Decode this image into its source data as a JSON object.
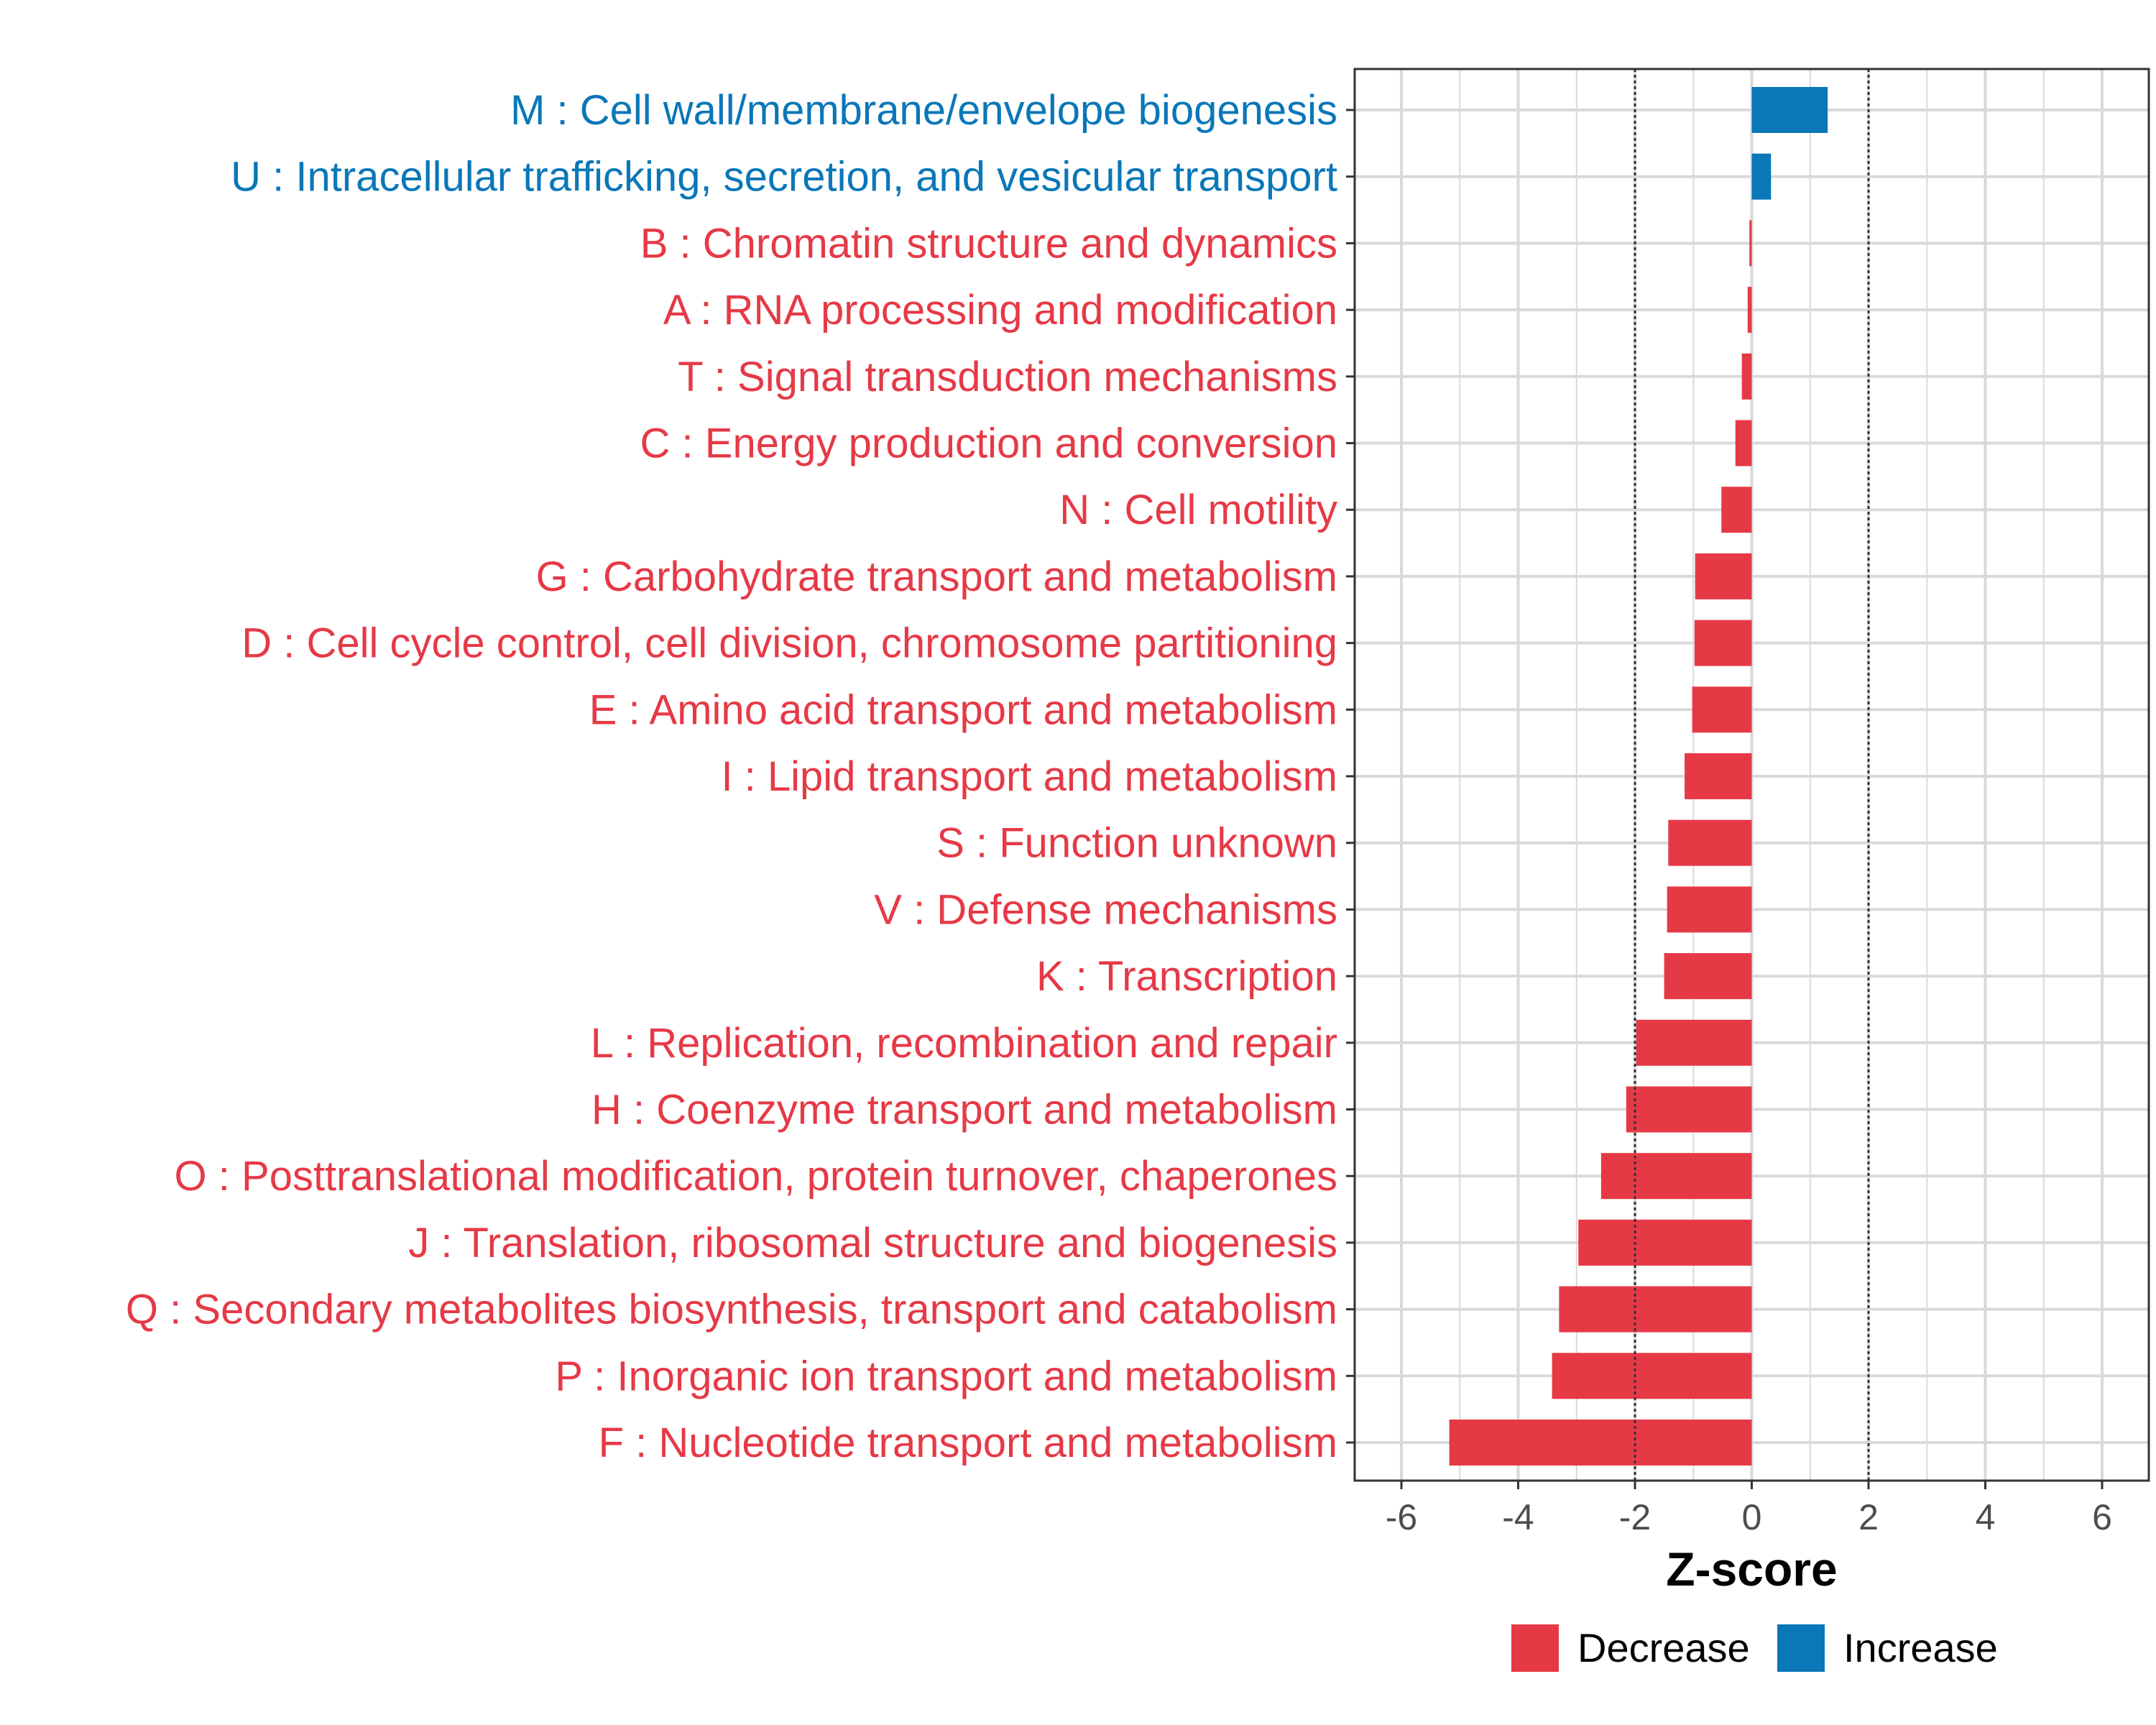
{
  "chart_data": {
    "type": "bar",
    "orientation": "horizontal",
    "categories": [
      "M : Cell wall/membrane/envelope biogenesis",
      "U : Intracellular trafficking, secretion, and vesicular transport",
      "B : Chromatin structure and dynamics",
      "A : RNA processing and modification",
      "T : Signal transduction mechanisms",
      "C : Energy production and conversion",
      "N : Cell motility",
      "G : Carbohydrate transport and metabolism",
      "D : Cell cycle control, cell division, chromosome partitioning",
      "E : Amino acid transport and metabolism",
      "I : Lipid transport and metabolism",
      "S : Function unknown",
      "V : Defense mechanisms",
      "K : Transcription",
      "L : Replication, recombination and repair",
      "H : Coenzyme transport and metabolism",
      "O : Posttranslational modification, protein turnover, chaperones",
      "J : Translation, ribosomal structure and biogenesis",
      "Q : Secondary metabolites biosynthesis, transport and catabolism",
      "P : Inorganic ion transport and metabolism",
      "F : Nucleotide transport and metabolism"
    ],
    "values": [
      1.3,
      0.33,
      -0.04,
      -0.07,
      -0.17,
      -0.28,
      -0.52,
      -0.97,
      -0.98,
      -1.02,
      -1.15,
      -1.43,
      -1.45,
      -1.5,
      -1.98,
      -2.15,
      -2.58,
      -2.97,
      -3.3,
      -3.42,
      -5.18
    ],
    "groups": [
      "Increase",
      "Increase",
      "Decrease",
      "Decrease",
      "Decrease",
      "Decrease",
      "Decrease",
      "Decrease",
      "Decrease",
      "Decrease",
      "Decrease",
      "Decrease",
      "Decrease",
      "Decrease",
      "Decrease",
      "Decrease",
      "Decrease",
      "Decrease",
      "Decrease",
      "Decrease",
      "Decrease"
    ],
    "xlabel": "Z-score",
    "xlim": [
      -6.8,
      6.8
    ],
    "xticks": [
      -6,
      -4,
      -2,
      0,
      2,
      4,
      6
    ],
    "xtick_labels": [
      "-6",
      "-4",
      "-2",
      "0",
      "2",
      "4",
      "6"
    ],
    "reference_lines": [
      -2,
      2
    ],
    "grid": true,
    "legend": {
      "position": "bottom",
      "entries": [
        {
          "label": "Decrease",
          "color": "#e63946"
        },
        {
          "label": "Increase",
          "color": "#0a77b8"
        }
      ]
    },
    "colors": {
      "Decrease": "#e63946",
      "Increase": "#0a77b8",
      "grid": "#d9d9d9",
      "reference_line": "#333333"
    }
  }
}
